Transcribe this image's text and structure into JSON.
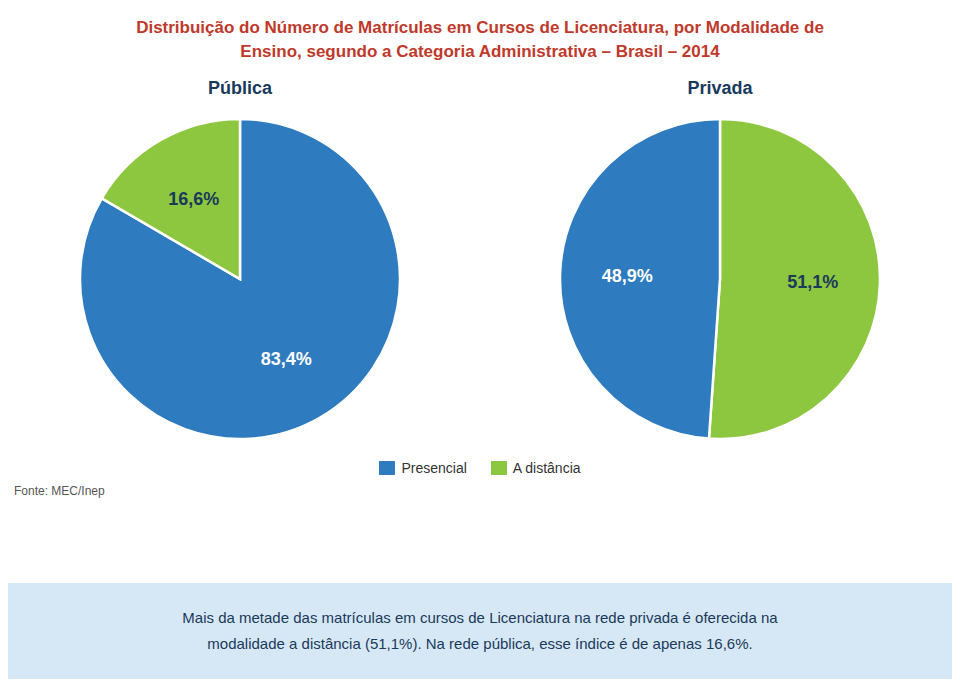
{
  "title": "Distribuição do Número de Matrículas em Cursos de Licenciatura, por Modalidade de\nEnsino, segundo a Categoria Administrativa – Brasil – 2014",
  "chart_data": [
    {
      "type": "pie",
      "subtitle": "Pública",
      "categories": [
        "Presencial",
        "A distância"
      ],
      "values": [
        83.4,
        16.6
      ],
      "value_labels": [
        "83,4%",
        "16,6%"
      ],
      "colors": [
        "#2e7bbf",
        "#8dc63f"
      ],
      "data_labels": true
    },
    {
      "type": "pie",
      "subtitle": "Privada",
      "categories": [
        "A distância",
        "Presencial"
      ],
      "values": [
        51.1,
        48.9
      ],
      "value_labels": [
        "51,1%",
        "48,9%"
      ],
      "colors": [
        "#8dc63f",
        "#2e7bbf"
      ],
      "data_labels": true
    }
  ],
  "annotations": [
    "Fonte: MEC/Inep",
    "Mais da metade das matrículas em cursos de Licenciatura na rede privada é oferecida na\nmodalidade a distância (51,1%). Na rede pública, esse índice é de apenas 16,6%."
  ]
}
